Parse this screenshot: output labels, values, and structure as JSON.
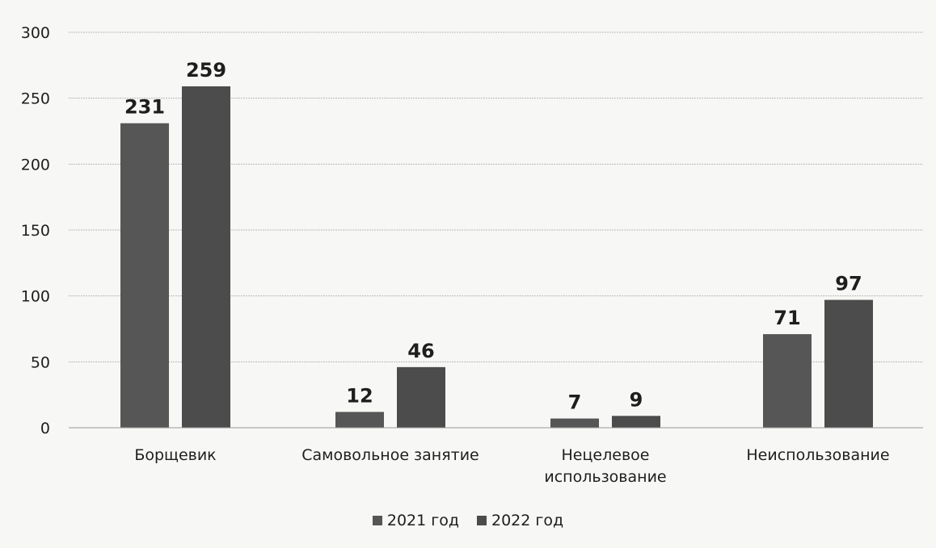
{
  "chart_data": {
    "type": "bar",
    "categories": [
      [
        "Борщевик"
      ],
      [
        "Самовольное занятие"
      ],
      [
        "Нецелевое",
        "использование"
      ],
      [
        "Неиспользование"
      ]
    ],
    "series": [
      {
        "name": "2021 год",
        "values": [
          231,
          12,
          7,
          71
        ],
        "color": "#565656"
      },
      {
        "name": "2022 год",
        "values": [
          259,
          46,
          9,
          97
        ],
        "color": "#4c4c4c"
      }
    ],
    "ylim": [
      0,
      300
    ],
    "yticks": [
      0,
      50,
      100,
      150,
      200,
      250,
      300
    ],
    "grid": true,
    "legend_position": "bottom"
  }
}
